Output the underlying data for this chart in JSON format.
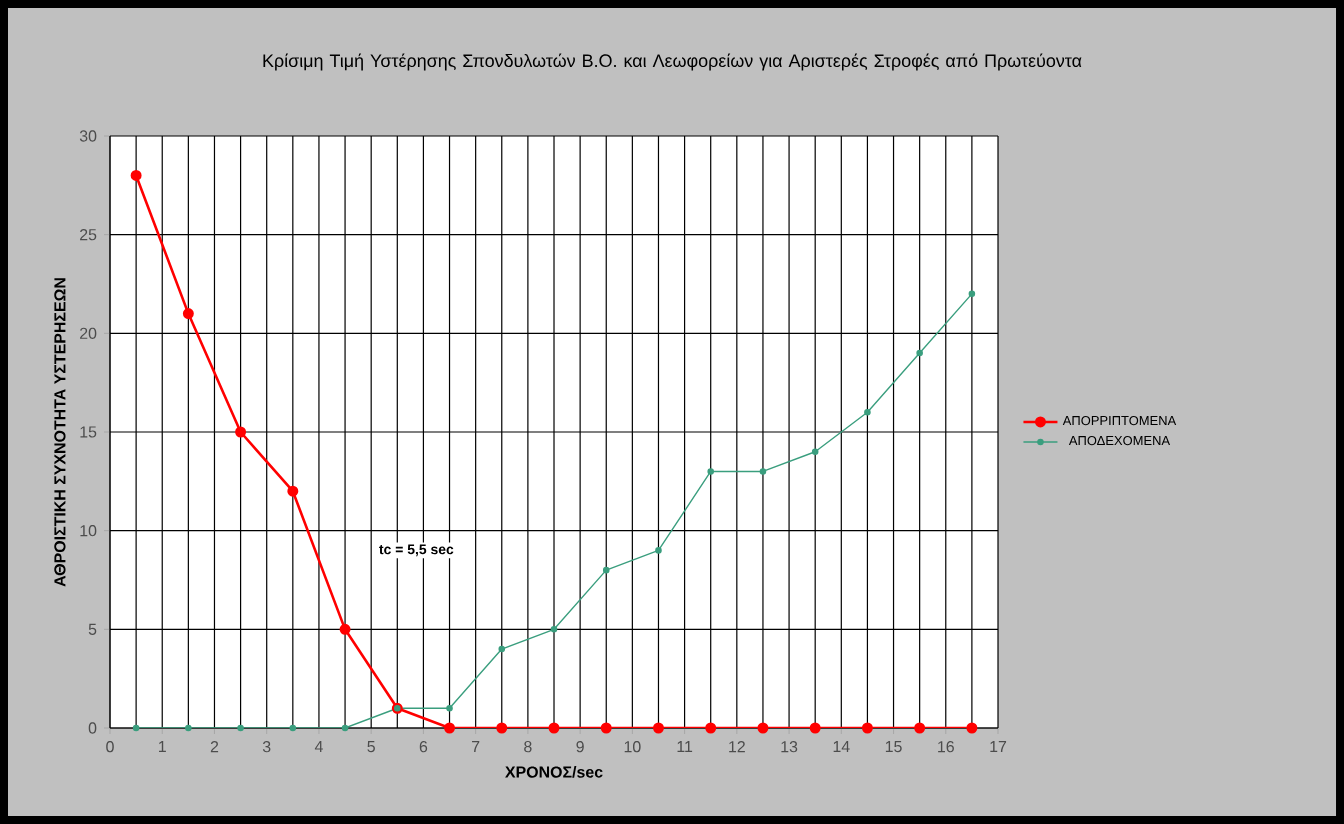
{
  "chart_data": {
    "type": "line",
    "title": "Κρίσιμη Τιμή Υστέρησης Σπονδυλωτών Β.Ο. και Λεωφορείων για Αριστερές Στροφές από Πρωτεύοντα",
    "xlabel": "ΧΡΟΝΟΣ/sec",
    "ylabel": "ΑΘΡΟΙΣΤΙΚΗ ΣΥΧΝΟΤΗΤΑ ΥΣΤΕΡΗΣΕΩΝ",
    "x": [
      0.5,
      1.5,
      2.5,
      3.5,
      4.5,
      5.5,
      6.5,
      7.5,
      8.5,
      9.5,
      10.5,
      11.5,
      12.5,
      13.5,
      14.5,
      15.5,
      16.5
    ],
    "series": [
      {
        "name": "ΑΠΟΡΡΙΠΤΟΜΕΝΑ",
        "color": "#ff0000",
        "values": [
          28,
          21,
          15,
          12,
          5,
          1,
          0,
          0,
          0,
          0,
          0,
          0,
          0,
          0,
          0,
          0,
          0
        ]
      },
      {
        "name": "ΑΠΟΔΕΧΟΜΕΝΑ",
        "color": "#3a9e7e",
        "values": [
          0,
          0,
          0,
          0,
          0,
          1,
          1,
          4,
          5,
          8,
          9,
          13,
          13,
          14,
          16,
          19,
          22
        ]
      }
    ],
    "xlim": [
      0,
      17
    ],
    "xticks": [
      0,
      1,
      2,
      3,
      4,
      5,
      6,
      7,
      8,
      9,
      10,
      11,
      12,
      13,
      14,
      15,
      16,
      17
    ],
    "ylim": [
      0,
      30
    ],
    "yticks": [
      0,
      5,
      10,
      15,
      20,
      25,
      30
    ],
    "grid": true,
    "legend": "right",
    "marker": "circle",
    "line_style": "solid",
    "annotations": [
      "tc = 5,5 sec"
    ]
  }
}
